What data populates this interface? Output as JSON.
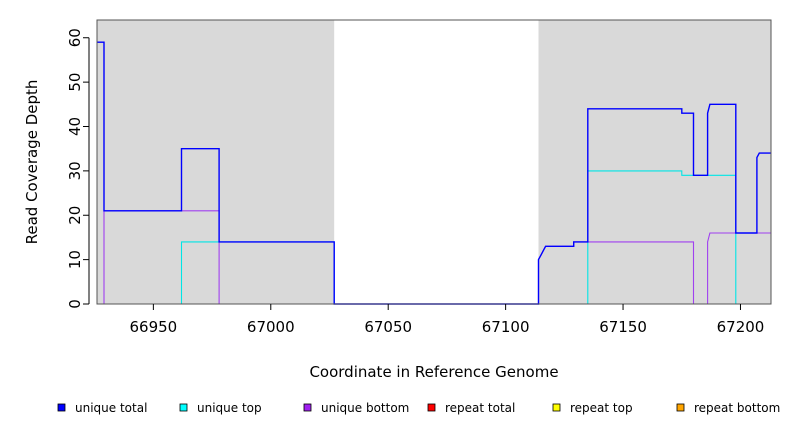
{
  "chart_data": {
    "type": "line",
    "title": "",
    "xlabel": "Coordinate in Reference Genome",
    "ylabel": "Read Coverage Depth",
    "xlim": [
      66926,
      67213
    ],
    "ylim": [
      0,
      64
    ],
    "x_ticks": [
      "66950",
      "67000",
      "67050",
      "67100",
      "67150",
      "67200"
    ],
    "y_ticks": [
      "0",
      "10",
      "20",
      "30",
      "40",
      "50",
      "60"
    ],
    "shaded_regions": [
      {
        "start": 66926,
        "end": 67027,
        "color": "#d9d9d9"
      },
      {
        "start": 67114,
        "end": 67213,
        "color": "#d9d9d9"
      }
    ],
    "series": [
      {
        "name": "unique total",
        "color": "#0000ff",
        "points": [
          [
            66926,
            59
          ],
          [
            66929,
            59
          ],
          [
            66929,
            21
          ],
          [
            66962,
            21
          ],
          [
            66962,
            35
          ],
          [
            66978,
            35
          ],
          [
            66978,
            14
          ],
          [
            67027,
            14
          ],
          [
            67027,
            0
          ],
          [
            67114,
            0
          ],
          [
            67114,
            10
          ],
          [
            67115,
            11
          ],
          [
            67116,
            12
          ],
          [
            67117,
            13
          ],
          [
            67129,
            13
          ],
          [
            67129,
            14
          ],
          [
            67135,
            14
          ],
          [
            67135,
            44
          ],
          [
            67175,
            44
          ],
          [
            67175,
            43
          ],
          [
            67180,
            43
          ],
          [
            67180,
            29
          ],
          [
            67186,
            29
          ],
          [
            67186,
            43
          ],
          [
            67187,
            45
          ],
          [
            67198,
            45
          ],
          [
            67198,
            16
          ],
          [
            67207,
            16
          ],
          [
            67207,
            33
          ],
          [
            67208,
            34
          ],
          [
            67213,
            34
          ]
        ]
      },
      {
        "name": "unique top",
        "color": "#00e5e5",
        "points": [
          [
            66926,
            0
          ],
          [
            66962,
            0
          ],
          [
            66962,
            14
          ],
          [
            66978,
            14
          ],
          [
            67027,
            14
          ],
          [
            67027,
            0
          ],
          [
            67135,
            0
          ],
          [
            67135,
            30
          ],
          [
            67175,
            30
          ],
          [
            67175,
            29
          ],
          [
            67198,
            29
          ],
          [
            67198,
            0
          ],
          [
            67213,
            0
          ]
        ]
      },
      {
        "name": "unique bottom",
        "color": "#a040f0",
        "points": [
          [
            66926,
            0
          ],
          [
            66929,
            0
          ],
          [
            66929,
            21
          ],
          [
            66978,
            21
          ],
          [
            66978,
            0
          ],
          [
            67114,
            0
          ],
          [
            67114,
            10
          ],
          [
            67115,
            11
          ],
          [
            67116,
            12
          ],
          [
            67117,
            13
          ],
          [
            67129,
            13
          ],
          [
            67129,
            14
          ],
          [
            67180,
            14
          ],
          [
            67180,
            0
          ],
          [
            67186,
            0
          ],
          [
            67186,
            14
          ],
          [
            67187,
            16
          ],
          [
            67213,
            16
          ]
        ]
      },
      {
        "name": "repeat total",
        "color": "#ff0000",
        "points": [
          [
            66926,
            0
          ],
          [
            67213,
            0
          ]
        ]
      },
      {
        "name": "repeat top",
        "color": "#ffff00",
        "points": [
          [
            66926,
            0
          ],
          [
            67213,
            0
          ]
        ]
      },
      {
        "name": "repeat bottom",
        "color": "#ffa500",
        "points": [
          [
            66926,
            0
          ],
          [
            67213,
            0
          ]
        ]
      }
    ],
    "legend_position": "bottom"
  },
  "legend": [
    {
      "label": "unique total",
      "color": "#0000ff"
    },
    {
      "label": "unique top",
      "color": "#00ffff"
    },
    {
      "label": "unique bottom",
      "color": "#a020f0"
    },
    {
      "label": "repeat total",
      "color": "#ff0000"
    },
    {
      "label": "repeat top",
      "color": "#ffff00"
    },
    {
      "label": "repeat bottom",
      "color": "#ffa500"
    }
  ]
}
